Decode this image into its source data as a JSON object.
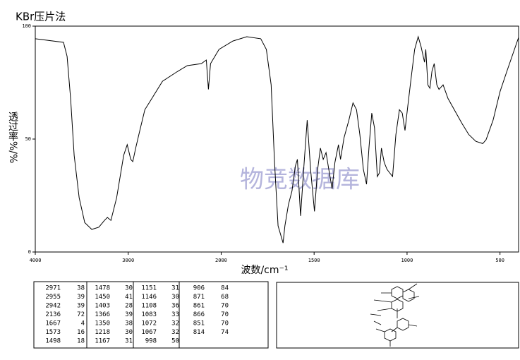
{
  "chart_data": {
    "type": "line",
    "title": "KBr压片法",
    "xlabel": "波数/cm⁻¹",
    "ylabel": "透过率%/%",
    "watermark": "物竞数据库",
    "xlim": [
      4000,
      400
    ],
    "ylim": [
      0,
      100
    ],
    "x_scale_break": 2000,
    "x_scale_ratio": 2,
    "xticks": [
      4000,
      3000,
      2000,
      1500,
      1000,
      500
    ],
    "yticks": [
      0,
      50,
      100
    ],
    "color": "#000000",
    "x": [
      4000,
      3696,
      3658,
      3620,
      3582,
      3528,
      3468,
      3392,
      3316,
      3255,
      3224,
      3186,
      3125,
      3049,
      3011,
      2973,
      2951,
      2920,
      2875,
      2821,
      2745,
      2631,
      2479,
      2365,
      2213,
      2160,
      2137,
      2114,
      2023,
      1937,
      1862,
      1787,
      1757,
      1731,
      1713,
      1694,
      1667,
      1657,
      1638,
      1619,
      1601,
      1590,
      1573,
      1556,
      1537,
      1519,
      1498,
      1481,
      1466,
      1451,
      1436,
      1421,
      1403,
      1388,
      1369,
      1358,
      1339,
      1313,
      1291,
      1272,
      1254,
      1235,
      1218,
      1205,
      1190,
      1175,
      1160,
      1149,
      1138,
      1123,
      1108,
      1093,
      1078,
      1060,
      1041,
      1026,
      1011,
      996,
      978,
      959,
      940,
      925,
      906,
      899,
      888,
      877,
      866,
      854,
      840,
      828,
      806,
      780,
      705,
      668,
      630,
      593,
      575,
      537,
      500,
      463,
      400
    ],
    "y": [
      94.4,
      92.8,
      86.6,
      67.8,
      42.8,
      24,
      13,
      10,
      11,
      14,
      15.3,
      14,
      24,
      42.8,
      47.5,
      41,
      40,
      46,
      53.8,
      63,
      68,
      75.6,
      79.7,
      82.5,
      83.4,
      85,
      72,
      83.4,
      89.7,
      93.4,
      95.3,
      94.4,
      89.7,
      74,
      39.7,
      11.6,
      4,
      11.6,
      21,
      27,
      38,
      41,
      16,
      36.6,
      58.4,
      36.6,
      18,
      36.6,
      46,
      41,
      44,
      36.6,
      28,
      39.7,
      47.5,
      41,
      50.6,
      58.4,
      66,
      63,
      52,
      36.6,
      30,
      46,
      61.5,
      55,
      33.4,
      35,
      46,
      39.7,
      36.6,
      35,
      33.4,
      52,
      63,
      61.5,
      53.8,
      64.7,
      77,
      89.7,
      95.3,
      91,
      84,
      89.7,
      74,
      72.5,
      80,
      83.4,
      74,
      72,
      74,
      68,
      57,
      52,
      49,
      48,
      49.7,
      58.4,
      71,
      80,
      95
    ]
  },
  "table": {
    "rows": [
      [
        "2971",
        "38",
        "1478",
        "30",
        "1151",
        "31",
        "906",
        "84"
      ],
      [
        "2955",
        "39",
        "1450",
        "41",
        "1146",
        "30",
        "871",
        "68"
      ],
      [
        "2942",
        "39",
        "1403",
        "28",
        "1108",
        "36",
        "861",
        "70"
      ],
      [
        "2136",
        "72",
        "1366",
        "39",
        "1083",
        "33",
        "866",
        "70"
      ],
      [
        "1667",
        "4",
        "1350",
        "38",
        "1072",
        "32",
        "851",
        "70"
      ],
      [
        "1573",
        "16",
        "1218",
        "30",
        "1067",
        "32",
        "814",
        "74"
      ],
      [
        "1498",
        "18",
        "1167",
        "31",
        "998",
        "50"
      ]
    ]
  }
}
